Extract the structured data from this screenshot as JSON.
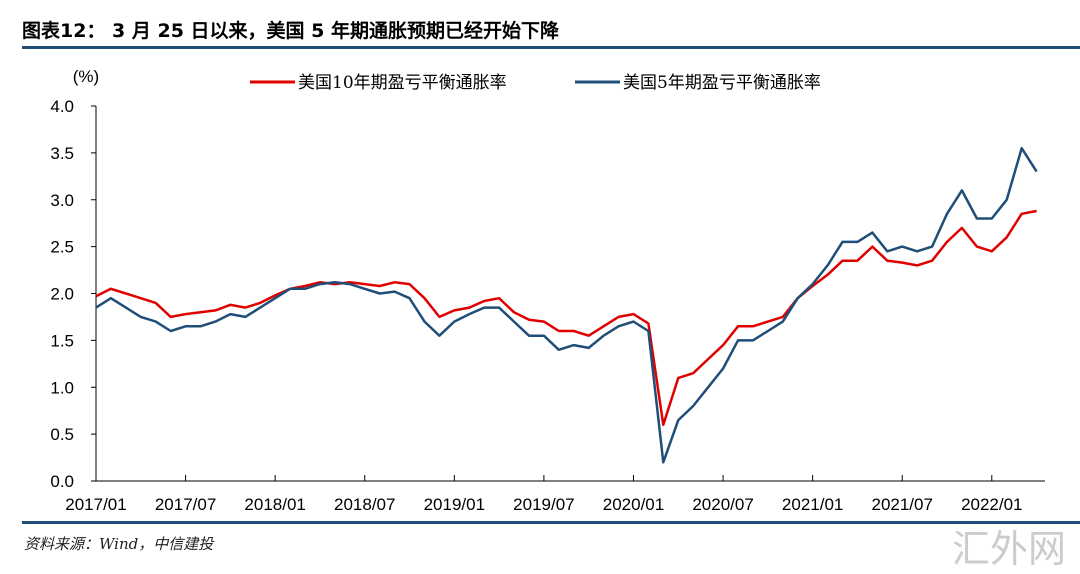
{
  "title": "图表12： 3 月 25 日以来，美国 5 年期通胀预期已经开始下降",
  "source": "资料来源：Wind，中信建投",
  "watermark": "汇外网",
  "chart_data": {
    "type": "line",
    "title": "图表12： 3 月 25 日以来，美国 5 年期通胀预期已经开始下降",
    "ylabel": "(%)",
    "xlabel": "",
    "ylim": [
      0,
      4
    ],
    "yticks": [
      "0.0",
      "0.5",
      "1.0",
      "1.5",
      "2.0",
      "2.5",
      "3.0",
      "3.5",
      "4.0"
    ],
    "xticks": [
      "2017/01",
      "2017/07",
      "2018/01",
      "2018/07",
      "2019/01",
      "2019/07",
      "2020/01",
      "2020/07",
      "2021/01",
      "2021/07",
      "2022/01"
    ],
    "x_start": "2017/01",
    "x_step": "month",
    "legend_position": "top",
    "grid": false,
    "series": [
      {
        "name": "美国10年期盈亏平衡通胀率",
        "color": "#e00000",
        "values": [
          1.97,
          2.05,
          2.0,
          1.95,
          1.9,
          1.75,
          1.78,
          1.8,
          1.82,
          1.88,
          1.85,
          1.9,
          1.98,
          2.05,
          2.08,
          2.12,
          2.1,
          2.12,
          2.1,
          2.08,
          2.12,
          2.1,
          1.95,
          1.75,
          1.82,
          1.85,
          1.92,
          1.95,
          1.8,
          1.72,
          1.7,
          1.6,
          1.6,
          1.55,
          1.65,
          1.75,
          1.78,
          1.68,
          0.6,
          1.1,
          1.15,
          1.3,
          1.45,
          1.65,
          1.65,
          1.7,
          1.75,
          1.95,
          2.08,
          2.2,
          2.35,
          2.35,
          2.5,
          2.35,
          2.33,
          2.3,
          2.35,
          2.55,
          2.7,
          2.5,
          2.45,
          2.6,
          2.85,
          2.88
        ]
      },
      {
        "name": "美国5年期盈亏平衡通胀率",
        "color": "#1f4e79",
        "values": [
          1.85,
          1.95,
          1.85,
          1.75,
          1.7,
          1.6,
          1.65,
          1.65,
          1.7,
          1.78,
          1.75,
          1.85,
          1.95,
          2.05,
          2.05,
          2.1,
          2.12,
          2.1,
          2.05,
          2.0,
          2.02,
          1.95,
          1.7,
          1.55,
          1.7,
          1.78,
          1.85,
          1.85,
          1.7,
          1.55,
          1.55,
          1.4,
          1.45,
          1.42,
          1.55,
          1.65,
          1.7,
          1.6,
          0.2,
          0.65,
          0.8,
          1.0,
          1.2,
          1.5,
          1.5,
          1.6,
          1.7,
          1.95,
          2.1,
          2.3,
          2.55,
          2.55,
          2.65,
          2.45,
          2.5,
          2.45,
          2.5,
          2.85,
          3.1,
          2.8,
          2.8,
          3.0,
          3.55,
          3.3
        ]
      }
    ]
  }
}
